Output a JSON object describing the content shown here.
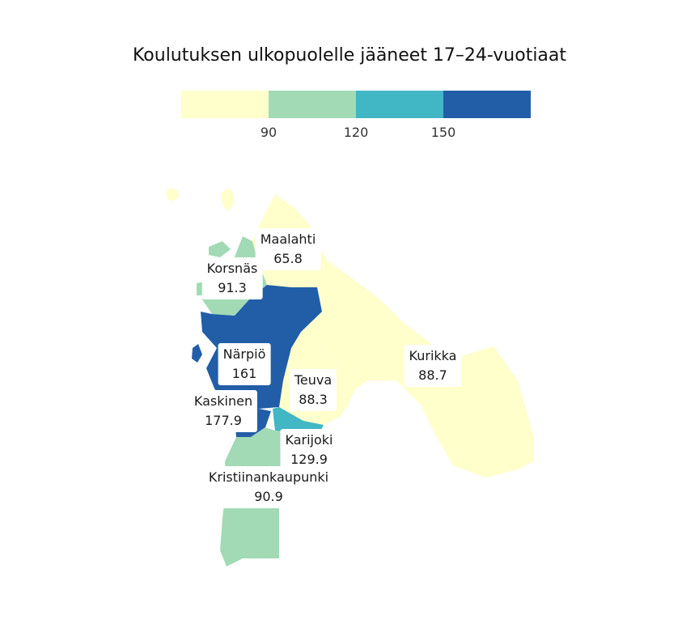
{
  "title": "Koulutuksen ulkopuolelle jääneet 17–24-vuotiaat",
  "legend": {
    "colors": [
      "#ffffcc",
      "#a1dab4",
      "#41b6c4",
      "#225ea8"
    ],
    "ticks": [
      "90",
      "120",
      "150"
    ]
  },
  "colors": {
    "low": "#ffffcc",
    "mid": "#a1dab4",
    "high": "#41b6c4",
    "top": "#225ea8"
  },
  "regions": [
    {
      "name": "Maalahti",
      "value": "65.8",
      "color": "#ffffcc"
    },
    {
      "name": "Korsnäs",
      "value": "91.3",
      "color": "#a1dab4"
    },
    {
      "name": "Närpiö",
      "value": "161",
      "color": "#225ea8"
    },
    {
      "name": "Kurikka",
      "value": "88.7",
      "color": "#ffffcc"
    },
    {
      "name": "Teuva",
      "value": "88.3",
      "color": "#ffffcc"
    },
    {
      "name": "Kaskinen",
      "value": "177.9",
      "color": "#225ea8"
    },
    {
      "name": "Karijoki",
      "value": "129.9",
      "color": "#41b6c4"
    },
    {
      "name": "Kristiinankaupunki",
      "value": "90.9",
      "color": "#a1dab4"
    }
  ]
}
